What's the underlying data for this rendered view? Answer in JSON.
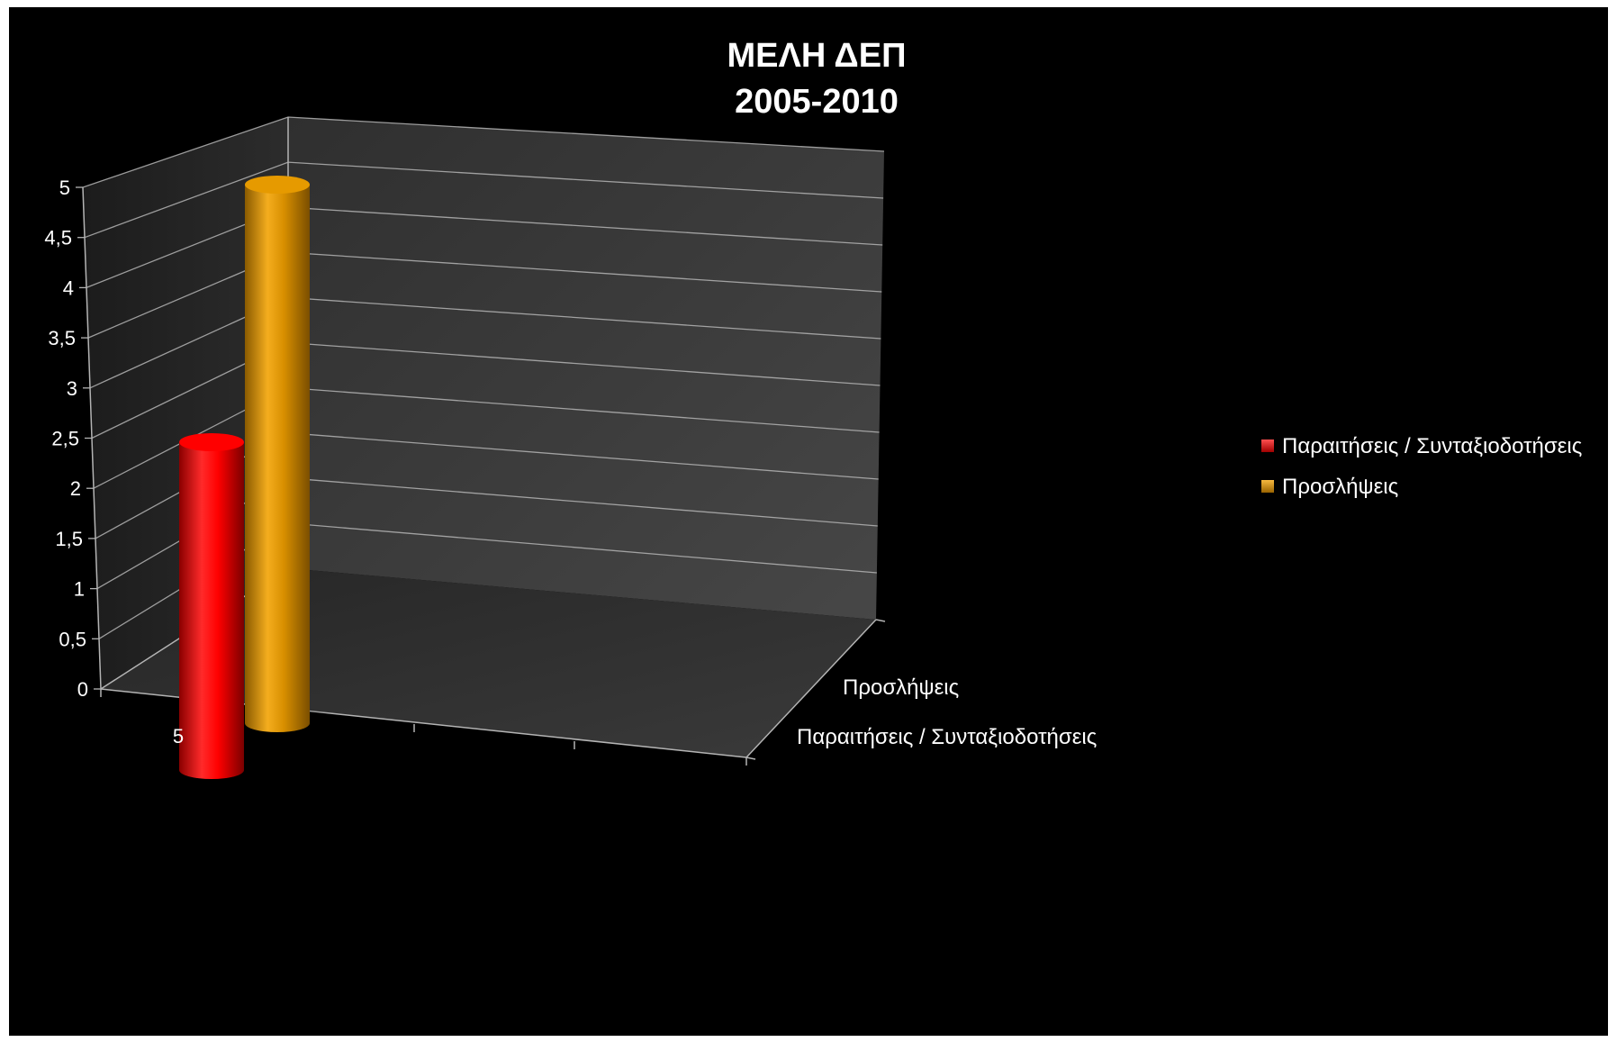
{
  "chart_data": {
    "type": "bar",
    "subtype": "3d-cylinder",
    "title": [
      "ΜΕΛΗ ΔΕΠ",
      "2005-2010"
    ],
    "categories": [
      "5"
    ],
    "series": [
      {
        "name": "Παραιτήσεις / Συνταξιοδοτήσεις",
        "values": [
          3
        ],
        "color": "#ff0000"
      },
      {
        "name": "Προσλήψεις",
        "values": [
          5
        ],
        "color": "#e69a00"
      }
    ],
    "depth_labels": [
      "Προσλήψεις",
      "Παραιτήσεις / Συνταξιοδοτήσεις"
    ],
    "y_ticks": [
      "0",
      "0,5",
      "1",
      "1,5",
      "2",
      "2,5",
      "3",
      "3,5",
      "4",
      "4,5",
      "5"
    ],
    "ylim": [
      0,
      5
    ],
    "ystep": 0.5,
    "grid": true,
    "legend_position": "right",
    "colors": {
      "background": "#000000",
      "wall": "#3c3c3c",
      "floor": "#2e2e2e",
      "grid": "#b4b4b4",
      "text": "#ffffff"
    }
  }
}
